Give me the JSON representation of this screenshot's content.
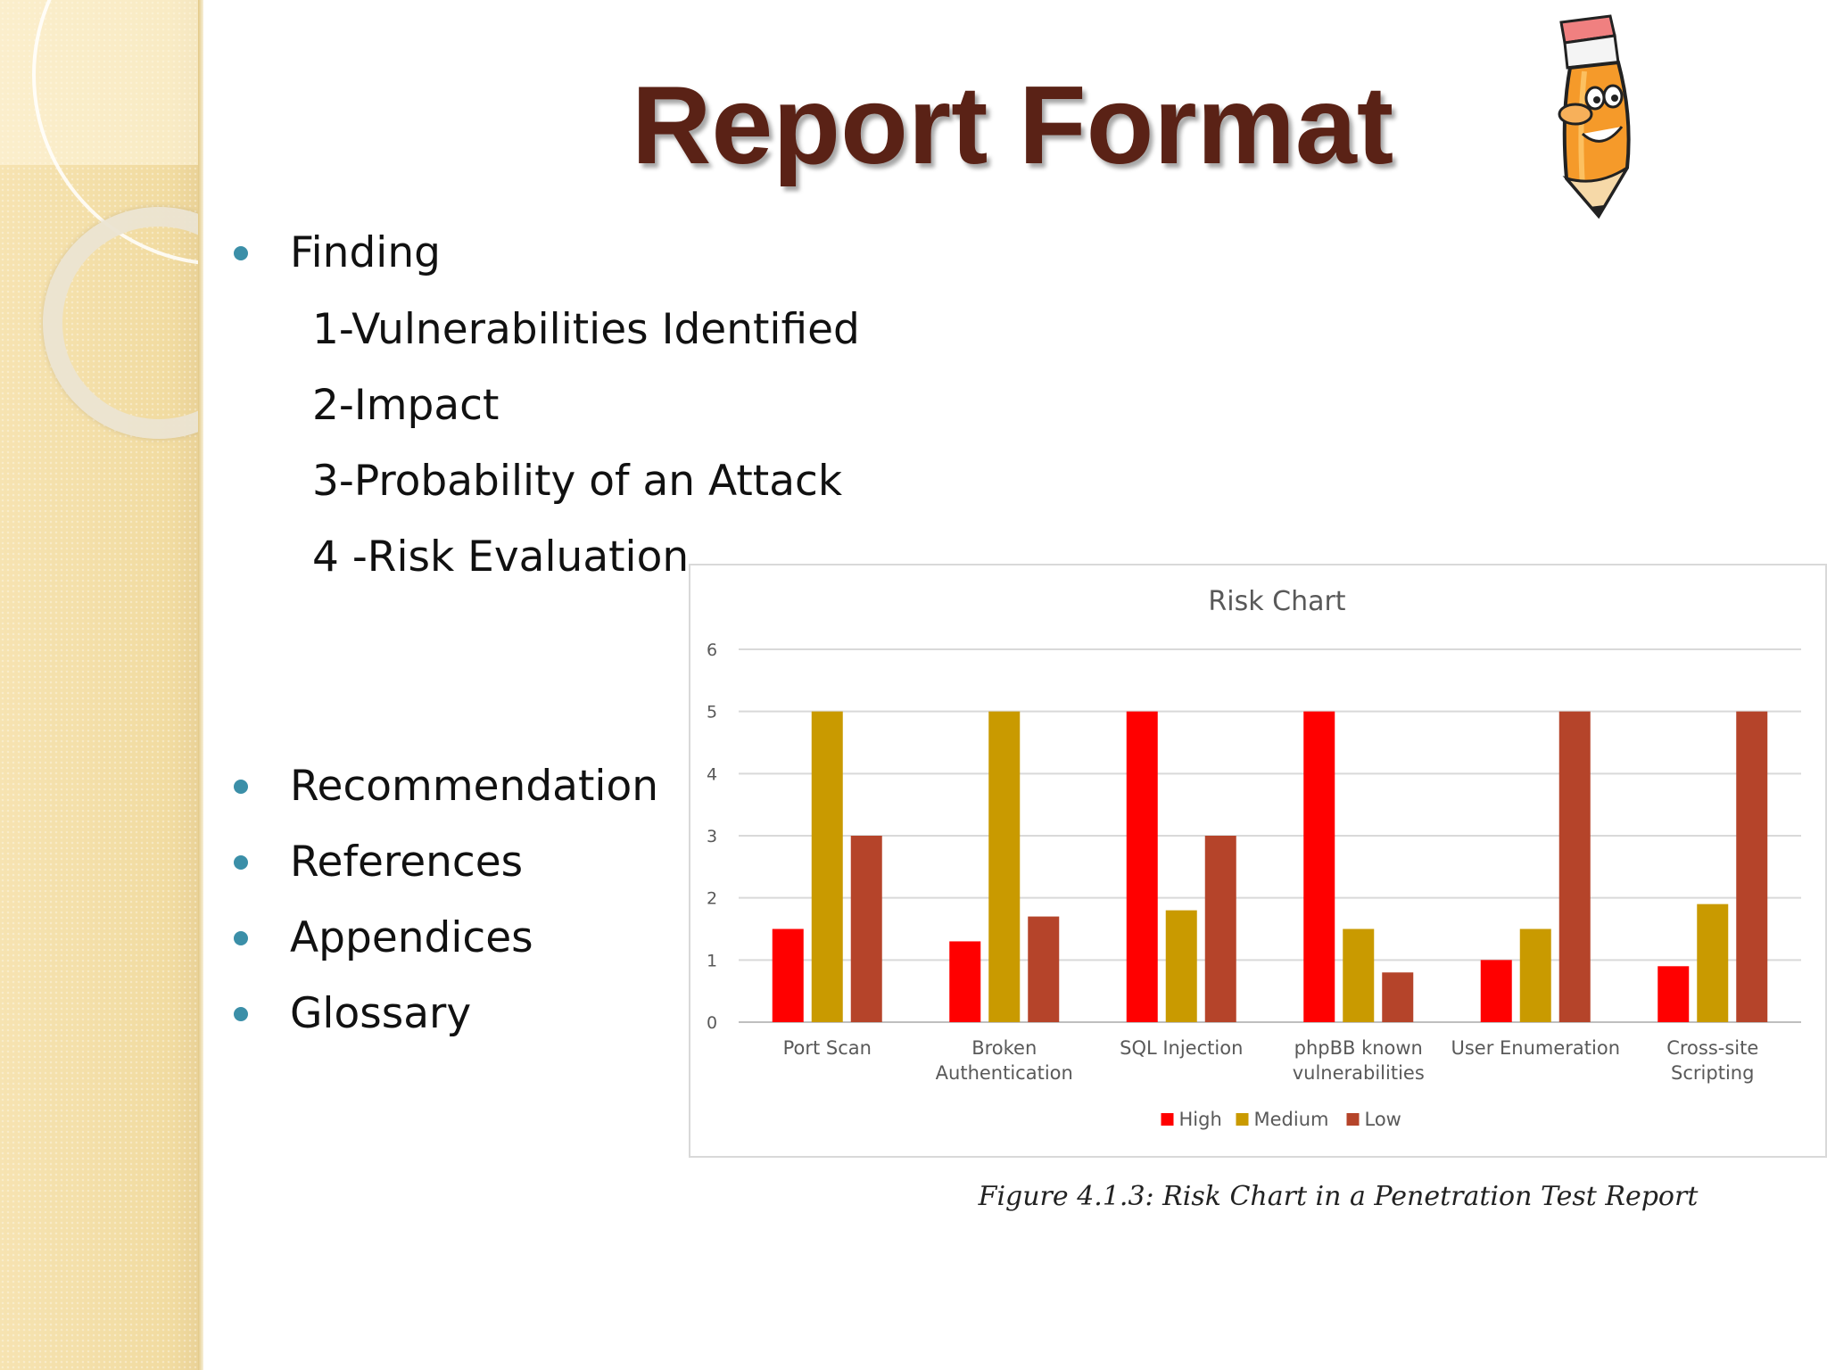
{
  "slide": {
    "title": "Report Format",
    "finding": {
      "label": "Finding",
      "sub_items": [
        "1-Vulnerabilities Identified",
        "2-Impact",
        "3-Probability of an Attack",
        "4 -Risk Evaluation"
      ]
    },
    "bullets": [
      "Recommendation",
      "References",
      "Appendices",
      "Glossary"
    ],
    "caption": "Figure 4.1.3: Risk Chart in a Penetration Test Report"
  },
  "colors": {
    "title": "#5a2216",
    "bullet": "#3b8fa8",
    "high": "#ff0000",
    "medium": "#c99a00",
    "low": "#b5442a"
  },
  "chart_data": {
    "type": "bar",
    "title": "Risk Chart",
    "categories": [
      [
        "Port Scan"
      ],
      [
        "Broken",
        "Authentication"
      ],
      [
        "SQL Injection"
      ],
      [
        "phpBB known",
        "vulnerabilities"
      ],
      [
        "User Enumeration"
      ],
      [
        "Cross-site",
        "Scripting"
      ]
    ],
    "series": [
      {
        "name": "High",
        "color": "#ff0000",
        "values": [
          1.5,
          1.3,
          5,
          5,
          1,
          0.9
        ]
      },
      {
        "name": "Medium",
        "color": "#c99a00",
        "values": [
          5,
          5,
          1.8,
          1.5,
          1.5,
          1.9
        ]
      },
      {
        "name": "Low",
        "color": "#b5442a",
        "values": [
          3,
          1.7,
          3,
          0.8,
          5,
          5
        ]
      }
    ],
    "ylim": [
      0,
      6
    ],
    "yticks": [
      0,
      1,
      2,
      3,
      4,
      5,
      6
    ],
    "grid": true,
    "legend": "bottom"
  }
}
